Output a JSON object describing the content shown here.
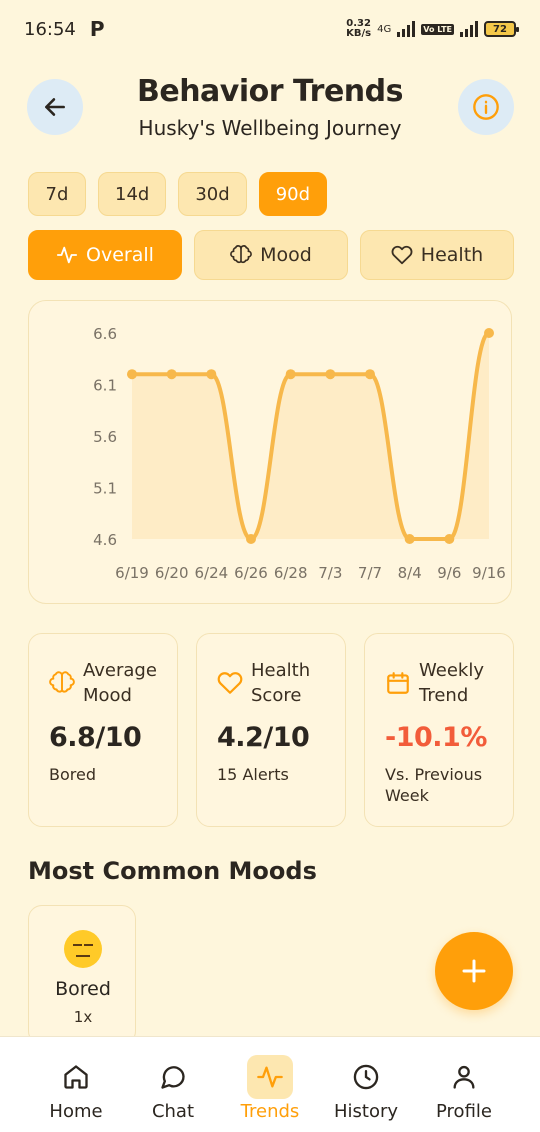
{
  "status_bar": {
    "time": "16:54",
    "carrier_icon": "P",
    "netspeed_value": "0.32",
    "netspeed_unit": "KB/s",
    "network": "4G",
    "volte": "Vo LTE",
    "battery": "72"
  },
  "header": {
    "title": "Behavior Trends",
    "subtitle": "Husky's Wellbeing Journey",
    "back_icon": "arrow-left-icon",
    "info_icon": "info-icon"
  },
  "ranges": [
    {
      "label": "7d",
      "active": false
    },
    {
      "label": "14d",
      "active": false
    },
    {
      "label": "30d",
      "active": false
    },
    {
      "label": "90d",
      "active": true
    }
  ],
  "views": [
    {
      "label": "Overall",
      "icon": "activity-icon",
      "active": true
    },
    {
      "label": "Mood",
      "icon": "brain-icon",
      "active": false
    },
    {
      "label": "Health",
      "icon": "heart-icon",
      "active": false
    }
  ],
  "chart_data": {
    "type": "line",
    "title": "",
    "xlabel": "",
    "ylabel": "",
    "categories": [
      "6/19",
      "6/20",
      "6/24",
      "6/26",
      "6/28",
      "7/3",
      "7/7",
      "8/4",
      "9/6",
      "9/16"
    ],
    "series": [
      {
        "values": [
          6.2,
          6.2,
          6.2,
          4.6,
          6.2,
          6.2,
          6.2,
          4.6,
          4.6,
          6.6
        ]
      }
    ],
    "yticks": [
      "6.6",
      "6.1",
      "5.6",
      "5.1",
      "4.6"
    ],
    "ylim": [
      4.6,
      6.6
    ],
    "grid": false,
    "legend": "none",
    "line_color": "#F7B84B",
    "fill_color": "#FDE8BE"
  },
  "stats": [
    {
      "icon": "brain-icon",
      "label_line1": "Average",
      "label_line2": "Mood",
      "value": "6.8/10",
      "sub_line1": "Bored",
      "sub_line2": ""
    },
    {
      "icon": "heart-icon",
      "label_line1": "Health",
      "label_line2": "Score",
      "value": "4.2/10",
      "sub_line1": "15 Alerts",
      "sub_line2": ""
    },
    {
      "icon": "calendar-icon",
      "label_line1": "Weekly",
      "label_line2": "Trend",
      "value": "-10.1%",
      "sub_line1": "Vs. Previous",
      "sub_line2": "Week"
    }
  ],
  "moods_section": {
    "title": "Most Common Moods",
    "items": [
      {
        "emoji": "expressionless-face-icon",
        "name": "Bored",
        "count": "1x"
      }
    ]
  },
  "fab": {
    "icon": "plus-icon"
  },
  "bottom_nav": [
    {
      "label": "Home",
      "icon": "home-icon",
      "active": false
    },
    {
      "label": "Chat",
      "icon": "chat-bubble-icon",
      "active": false
    },
    {
      "label": "Trends",
      "icon": "activity-icon",
      "active": true
    },
    {
      "label": "History",
      "icon": "clock-icon",
      "active": false
    },
    {
      "label": "Profile",
      "icon": "user-icon",
      "active": false
    }
  ],
  "colors": {
    "accent": "#FF9F0A",
    "background": "#FEF6DC",
    "negative": "#F25C3A"
  }
}
